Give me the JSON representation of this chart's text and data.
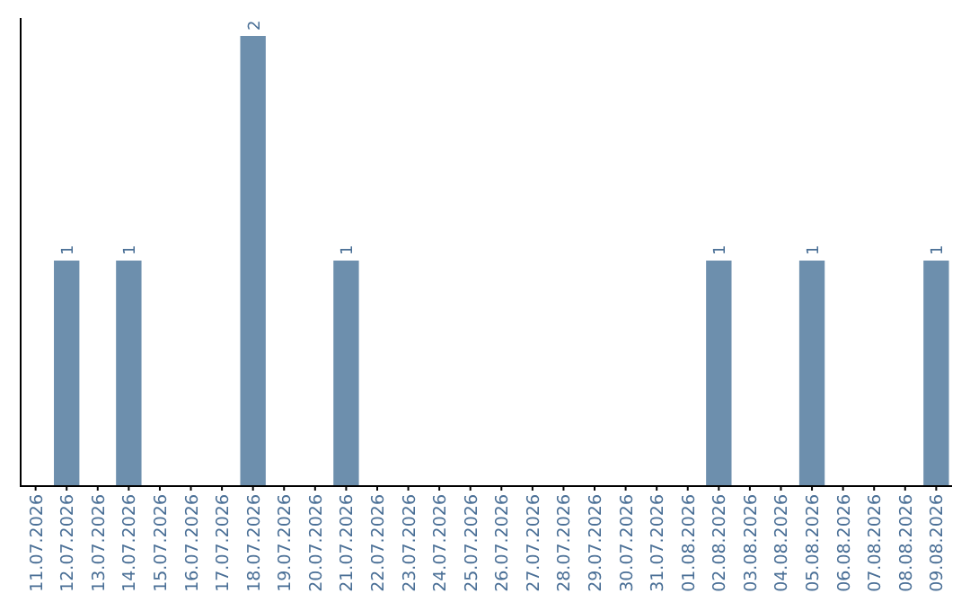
{
  "chart_data": {
    "type": "bar",
    "categories": [
      "11.07.2026",
      "12.07.2026",
      "13.07.2026",
      "14.07.2026",
      "15.07.2026",
      "16.07.2026",
      "17.07.2026",
      "18.07.2026",
      "19.07.2026",
      "20.07.2026",
      "21.07.2026",
      "22.07.2026",
      "23.07.2026",
      "24.07.2026",
      "25.07.2026",
      "26.07.2026",
      "27.07.2026",
      "28.07.2026",
      "29.07.2026",
      "30.07.2026",
      "31.07.2026",
      "01.08.2026",
      "02.08.2026",
      "03.08.2026",
      "04.08.2026",
      "05.08.2026",
      "06.08.2026",
      "07.08.2026",
      "08.08.2026",
      "09.08.2026"
    ],
    "values": [
      0,
      1,
      0,
      1,
      0,
      0,
      0,
      2,
      0,
      0,
      1,
      0,
      0,
      0,
      0,
      0,
      0,
      0,
      0,
      0,
      0,
      0,
      1,
      0,
      0,
      1,
      0,
      0,
      0,
      1
    ],
    "value_labels": [
      null,
      "1",
      null,
      "1",
      null,
      null,
      null,
      "2",
      null,
      null,
      "1",
      null,
      null,
      null,
      null,
      null,
      null,
      null,
      null,
      null,
      null,
      null,
      "1",
      null,
      null,
      "1",
      null,
      null,
      null,
      "1"
    ],
    "color": "#6d8fad"
  }
}
